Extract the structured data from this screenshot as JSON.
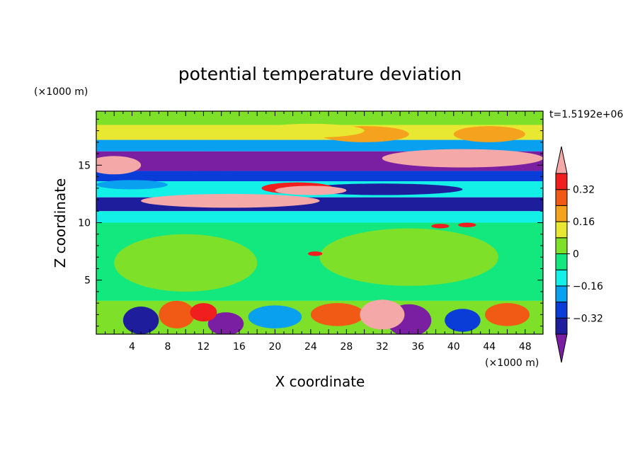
{
  "chart_data": {
    "type": "heatmap",
    "title": "potential temperature deviation",
    "xlabel": "X coordinate",
    "ylabel": "Z coordinate",
    "x_unit": "(×1000 m)",
    "y_unit": "(×1000 m)",
    "time_label": "t=1.5192e+06",
    "xlim": [
      0,
      50
    ],
    "ylim": [
      0.3,
      19.7
    ],
    "x_ticks": [
      4,
      8,
      12,
      16,
      20,
      24,
      28,
      32,
      36,
      40,
      44,
      48
    ],
    "y_ticks": [
      5,
      10,
      15
    ],
    "colorbar": {
      "levels": [
        -0.4,
        -0.32,
        -0.24,
        -0.16,
        -0.08,
        0,
        0.08,
        0.16,
        0.24,
        0.32,
        0.4
      ],
      "tick_values": [
        "0.32",
        "0.16",
        "0",
        "−0.16",
        "−0.32"
      ],
      "colors": [
        "#7b1fa2",
        "#1e1e9c",
        "#0a3cd8",
        "#0aa0f0",
        "#13f0e8",
        "#13e87f",
        "#7fe02a",
        "#e8e832",
        "#f5a21e",
        "#f05a14",
        "#f01e1e",
        "#f5a8a8"
      ],
      "extend": "both"
    },
    "bands": [
      {
        "z": [
          18.5,
          19.7
        ],
        "level": 6
      },
      {
        "z": [
          17.2,
          18.5
        ],
        "level": 7
      },
      {
        "z": [
          16.2,
          17.2
        ],
        "level": 3
      },
      {
        "z": [
          14.5,
          16.2
        ],
        "level": 0
      },
      {
        "z": [
          13.6,
          14.5
        ],
        "level": 2
      },
      {
        "z": [
          12.2,
          13.6
        ],
        "level": 4
      },
      {
        "z": [
          11.0,
          12.2
        ],
        "level": 1
      },
      {
        "z": [
          10.0,
          11.0
        ],
        "level": 4
      },
      {
        "z": [
          3.2,
          10.0
        ],
        "level": 5
      },
      {
        "z": [
          0.3,
          3.2
        ],
        "level": 6
      }
    ],
    "blobs": [
      {
        "x": 13,
        "z": 15.3,
        "rx": 12,
        "rz": 0.8,
        "level": 0
      },
      {
        "x": 32,
        "z": 12.9,
        "rx": 9,
        "rz": 0.5,
        "level": 1
      },
      {
        "x": 41,
        "z": 15.6,
        "rx": 9,
        "rz": 0.8,
        "level": 11
      },
      {
        "x": 2,
        "z": 15,
        "rx": 3,
        "rz": 0.8,
        "level": 11
      },
      {
        "x": 15,
        "z": 11.9,
        "rx": 10,
        "rz": 0.6,
        "level": 11
      },
      {
        "x": 22.5,
        "z": 13.0,
        "rx": 4,
        "rz": 0.5,
        "level": 10
      },
      {
        "x": 24,
        "z": 12.8,
        "rx": 4,
        "rz": 0.4,
        "level": 11
      },
      {
        "x": 30,
        "z": 17.7,
        "rx": 5,
        "rz": 0.7,
        "level": 8
      },
      {
        "x": 44,
        "z": 17.7,
        "rx": 4,
        "rz": 0.7,
        "level": 8
      },
      {
        "x": 24,
        "z": 18.0,
        "rx": 6,
        "rz": 0.6,
        "level": 7
      },
      {
        "x": 4,
        "z": 13.3,
        "rx": 4,
        "rz": 0.4,
        "level": 3
      },
      {
        "x": 10,
        "z": 6.5,
        "rx": 8,
        "rz": 2.5,
        "level": 6
      },
      {
        "x": 35,
        "z": 7.0,
        "rx": 10,
        "rz": 2.5,
        "level": 6
      },
      {
        "x": 5,
        "z": 1.5,
        "rx": 2,
        "rz": 1.2,
        "level": 1
      },
      {
        "x": 14.5,
        "z": 1.2,
        "rx": 2,
        "rz": 1.0,
        "level": 0
      },
      {
        "x": 35,
        "z": 1.5,
        "rx": 2.5,
        "rz": 1.4,
        "level": 0
      },
      {
        "x": 9,
        "z": 2.0,
        "rx": 2,
        "rz": 1.2,
        "level": 9
      },
      {
        "x": 27,
        "z": 2.0,
        "rx": 3,
        "rz": 1.0,
        "level": 9
      },
      {
        "x": 32,
        "z": 2.0,
        "rx": 2.5,
        "rz": 1.3,
        "level": 11
      },
      {
        "x": 46,
        "z": 2.0,
        "rx": 2.5,
        "rz": 1.0,
        "level": 9
      },
      {
        "x": 20,
        "z": 1.8,
        "rx": 3,
        "rz": 1.0,
        "level": 3
      },
      {
        "x": 41,
        "z": 1.5,
        "rx": 2,
        "rz": 1.0,
        "level": 2
      },
      {
        "x": 12,
        "z": 2.2,
        "rx": 1.5,
        "rz": 0.8,
        "level": 10
      },
      {
        "x": 38.5,
        "z": 9.7,
        "rx": 1.0,
        "rz": 0.2,
        "level": 10
      },
      {
        "x": 41.5,
        "z": 9.8,
        "rx": 1.0,
        "rz": 0.2,
        "level": 10
      },
      {
        "x": 24.5,
        "z": 7.3,
        "rx": 0.8,
        "rz": 0.2,
        "level": 10
      }
    ]
  }
}
